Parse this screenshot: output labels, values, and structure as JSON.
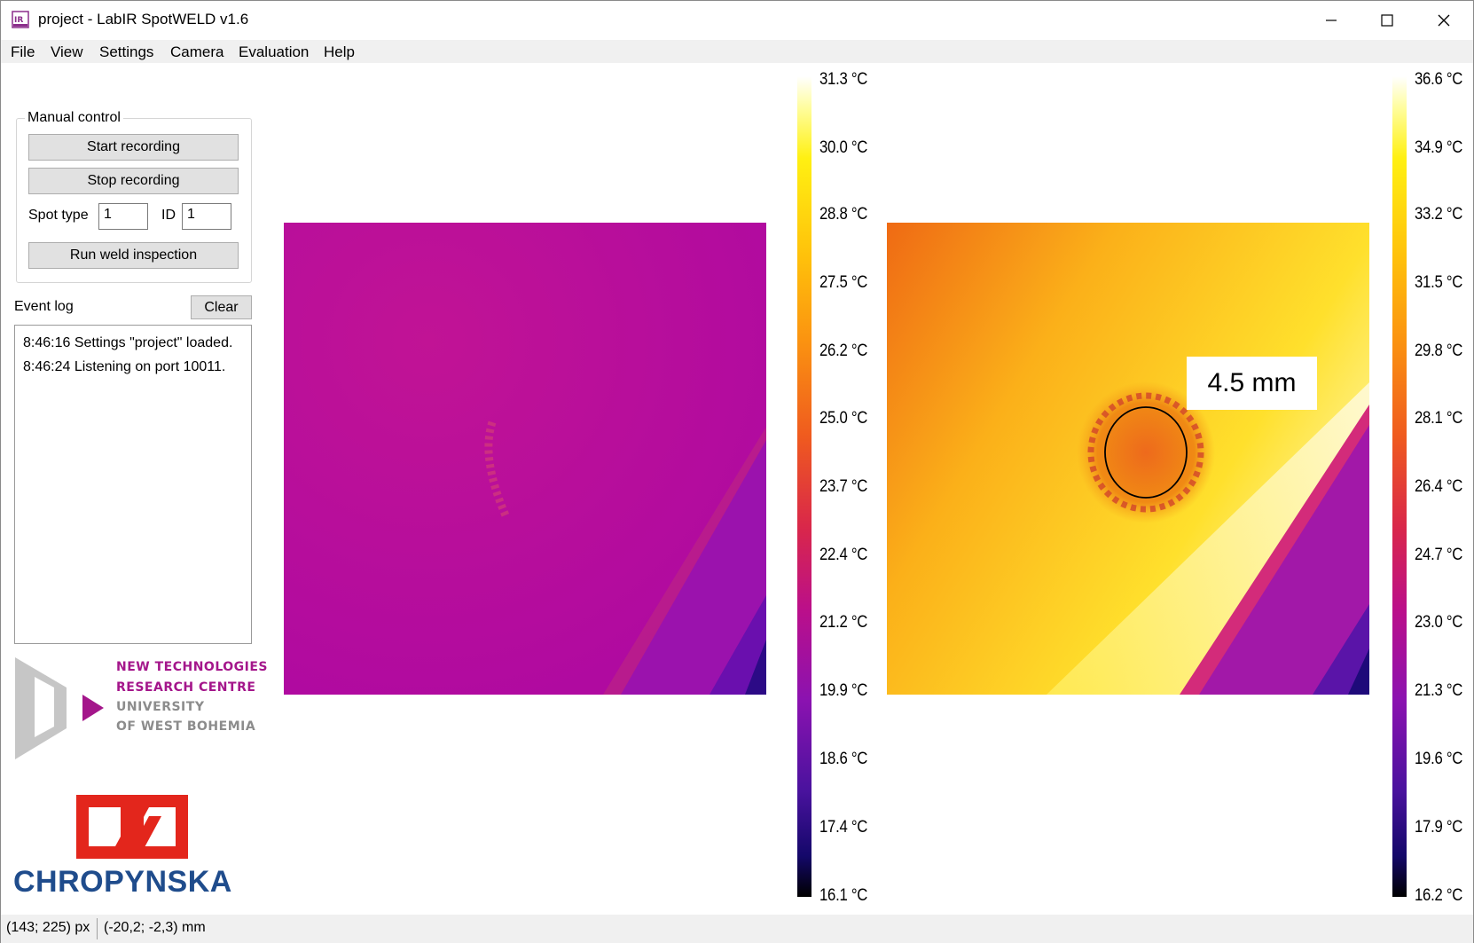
{
  "window": {
    "title": "project - LabIR SpotWELD v1.6",
    "app_icon": "labir-app-icon",
    "minimize_icon": "minimize-icon",
    "maximize_icon": "maximize-icon",
    "close_icon": "close-icon"
  },
  "menu": [
    "File",
    "View",
    "Settings",
    "Camera",
    "Evaluation",
    "Help"
  ],
  "manual_control": {
    "title": "Manual control",
    "start_label": "Start recording",
    "stop_label": "Stop recording",
    "spot_type_label": "Spot type",
    "spot_type_value": "1",
    "id_label": "ID",
    "id_value": "1",
    "run_label": "Run weld inspection"
  },
  "event_log": {
    "label": "Event log",
    "clear_label": "Clear",
    "lines": [
      "8:46:16 Settings \"project\" loaded.",
      "8:46:24 Listening on port 10011."
    ]
  },
  "logos": {
    "ntrc_lines": [
      "NEW TECHNOLOGIES",
      "RESEARCH CENTRE",
      "UNIVERSITY",
      "OF WEST BOHEMIA"
    ],
    "ntrc_colors": [
      "#a4168b",
      "#a4168b",
      "#8c8c8c",
      "#8c8c8c"
    ],
    "chropynska": "CHROPYNSKA",
    "chropynska_red": "#e3261c",
    "chropynska_blue": "#1f4c8c"
  },
  "left_scale": [
    "31.3 °C",
    "30.0 °C",
    "28.8 °C",
    "27.5 °C",
    "26.2 °C",
    "25.0 °C",
    "23.7 °C",
    "22.4 °C",
    "21.2 °C",
    "19.9 °C",
    "18.6 °C",
    "17.4 °C",
    "16.1 °C"
  ],
  "right_scale": [
    "36.6 °C",
    "34.9 °C",
    "33.2 °C",
    "31.5 °C",
    "29.8 °C",
    "28.1 °C",
    "26.4 °C",
    "24.7 °C",
    "23.0 °C",
    "21.3 °C",
    "19.6 °C",
    "17.9 °C",
    "16.2 °C"
  ],
  "measurement": "4.5 mm",
  "status": {
    "pixel": "(143; 225) px",
    "mm": "(-20,2; -2,3) mm"
  }
}
